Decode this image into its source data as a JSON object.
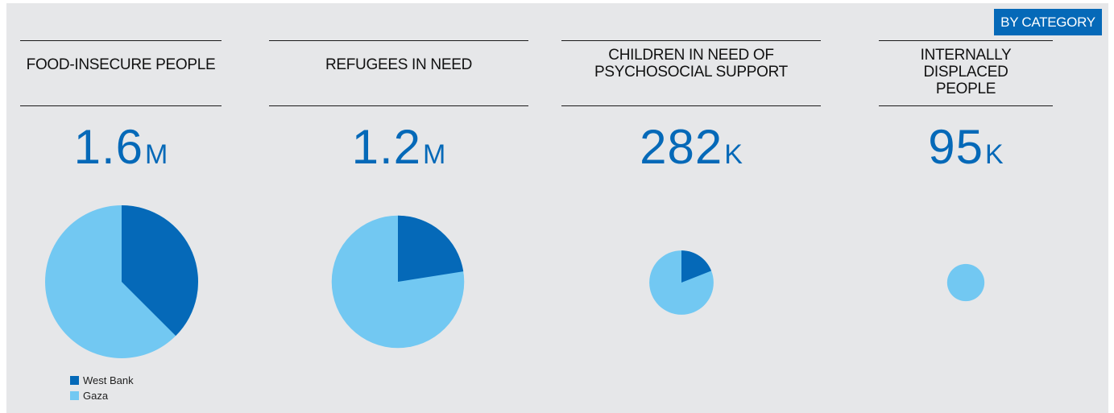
{
  "badge": "BY CATEGORY",
  "colors": {
    "west_bank": "#0569b8",
    "gaza": "#72c8f2",
    "accent": "#0569b8"
  },
  "legend": [
    {
      "label": "West Bank",
      "color": "#0569b8"
    },
    {
      "label": "Gaza",
      "color": "#72c8f2"
    }
  ],
  "chart_data": [
    {
      "type": "pie",
      "title_lines": [
        "FOOD-INSECURE PEOPLE"
      ],
      "number": "1.6",
      "unit": "M",
      "total_millions": 1.6,
      "west_bank_share": 0.375
    },
    {
      "type": "pie",
      "title_lines": [
        "REFUGEES IN NEED"
      ],
      "number": "1.2",
      "unit": "M",
      "total_millions": 1.2,
      "west_bank_share": 0.225
    },
    {
      "type": "pie",
      "title_lines": [
        "CHILDREN IN NEED OF",
        "PSYCHOSOCIAL SUPPORT"
      ],
      "number": "282",
      "unit": "K",
      "total_millions": 0.282,
      "west_bank_share": 0.19
    },
    {
      "type": "pie",
      "title_lines": [
        "INTERNALLY DISPLACED",
        "PEOPLE"
      ],
      "number": "95",
      "unit": "K",
      "total_millions": 0.095,
      "west_bank_share": 0.0
    }
  ]
}
